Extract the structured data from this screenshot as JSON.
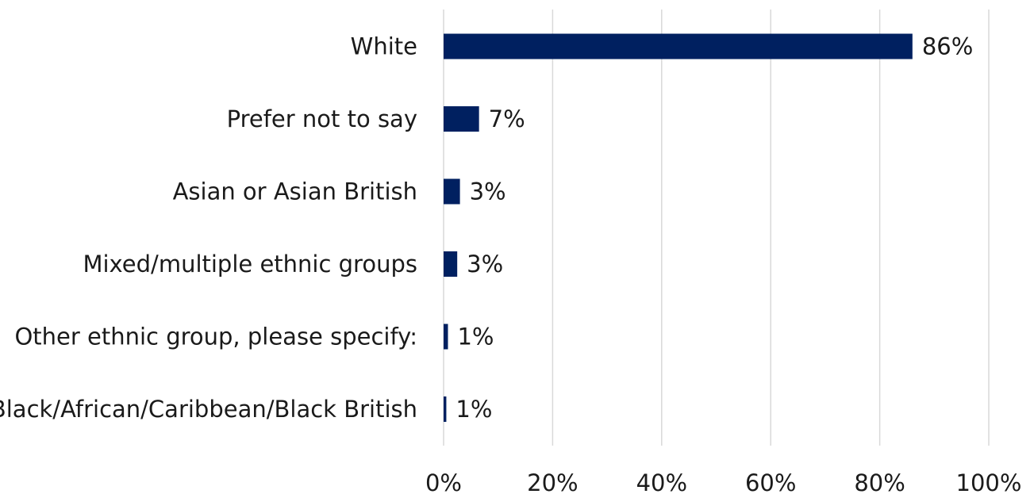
{
  "chart_data": {
    "type": "bar",
    "orientation": "horizontal",
    "categories": [
      "White",
      "Prefer not to say",
      "Asian or Asian British",
      "Mixed/multiple ethnic groups",
      "Other ethnic group, please specify:",
      "Black/African/Caribbean/Black British"
    ],
    "values": [
      86,
      6.5,
      3,
      2.5,
      0.8,
      0.5
    ],
    "data_labels": [
      "86%",
      "7%",
      "3%",
      "3%",
      "1%",
      "1%"
    ],
    "x_ticks": [
      "0%",
      "20%",
      "40%",
      "60%",
      "80%",
      "100%"
    ],
    "xlim": [
      0,
      100
    ],
    "grid": true,
    "bar_color": "#002060",
    "title": "",
    "xlabel": "",
    "ylabel": ""
  }
}
